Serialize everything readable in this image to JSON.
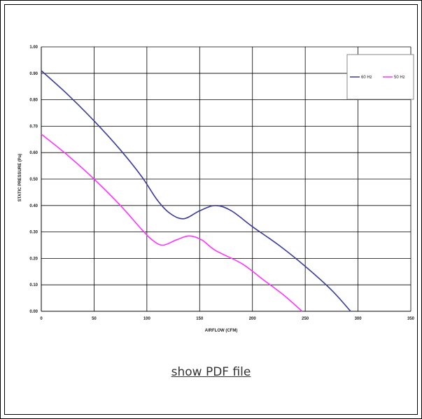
{
  "chart_data": {
    "type": "line",
    "title": "",
    "xlabel": "AIRFLOW (CFM)",
    "ylabel": "STATIC PRESSURE (Pa)",
    "xlim": [
      0,
      350
    ],
    "ylim": [
      0,
      1.0
    ],
    "x_ticks": [
      0,
      50,
      100,
      150,
      200,
      250,
      300,
      350
    ],
    "y_ticks": [
      0,
      0.1,
      0.2,
      0.3,
      0.4,
      0.5,
      0.6,
      0.7,
      0.8,
      0.9,
      1.0
    ],
    "x_tick_labels": [
      "0",
      "50",
      "100",
      "150",
      "200",
      "250",
      "300",
      "350"
    ],
    "y_tick_labels": [
      "0.00",
      "0.10",
      "0.20",
      "0.30",
      "0.40",
      "0.50",
      "0.60",
      "0.70",
      "0.80",
      "0.90",
      "1.00"
    ],
    "grid": true,
    "legend_position": "top-right",
    "series": [
      {
        "name": "60 Hz",
        "color": "#3a3a9e",
        "points": [
          [
            0,
            0.91
          ],
          [
            25,
            0.82
          ],
          [
            50,
            0.72
          ],
          [
            75,
            0.61
          ],
          [
            95,
            0.51
          ],
          [
            110,
            0.42
          ],
          [
            122,
            0.37
          ],
          [
            135,
            0.35
          ],
          [
            150,
            0.38
          ],
          [
            165,
            0.4
          ],
          [
            180,
            0.38
          ],
          [
            200,
            0.32
          ],
          [
            225,
            0.25
          ],
          [
            250,
            0.17
          ],
          [
            275,
            0.08
          ],
          [
            293,
            0.0
          ]
        ]
      },
      {
        "name": "50 Hz",
        "color": "#ff33ff",
        "points": [
          [
            0,
            0.67
          ],
          [
            25,
            0.59
          ],
          [
            50,
            0.5
          ],
          [
            75,
            0.4
          ],
          [
            95,
            0.31
          ],
          [
            105,
            0.27
          ],
          [
            115,
            0.25
          ],
          [
            128,
            0.27
          ],
          [
            140,
            0.285
          ],
          [
            152,
            0.27
          ],
          [
            165,
            0.23
          ],
          [
            190,
            0.18
          ],
          [
            210,
            0.12
          ],
          [
            230,
            0.06
          ],
          [
            247,
            0.0
          ]
        ]
      }
    ]
  },
  "footer": {
    "pdf_link": "show PDF file"
  }
}
